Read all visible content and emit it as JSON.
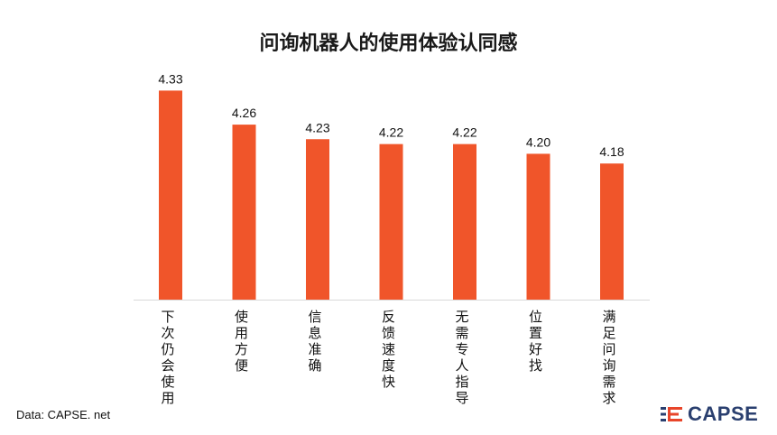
{
  "chart_data": {
    "type": "bar",
    "title": "问询机器人的使用体验认同感",
    "categories": [
      "下次仍会使用",
      "使用方便",
      "信息准确",
      "反馈速度快",
      "无需专人指导",
      "位置好找",
      "满足问询需求"
    ],
    "values": [
      4.33,
      4.26,
      4.23,
      4.22,
      4.22,
      4.2,
      4.18
    ],
    "value_labels": [
      "4.33",
      "4.26",
      "4.23",
      "4.22",
      "4.22",
      "4.20",
      "4.18"
    ],
    "bar_color": "#f0552a",
    "ylim": [
      3.9,
      4.34
    ],
    "grid": false,
    "legend": "none"
  },
  "footer": {
    "source": "Data: CAPSE. net",
    "logo_text": "CAPSE",
    "logo_color": "#2a3f6f",
    "logo_accent": "#e8452a"
  }
}
